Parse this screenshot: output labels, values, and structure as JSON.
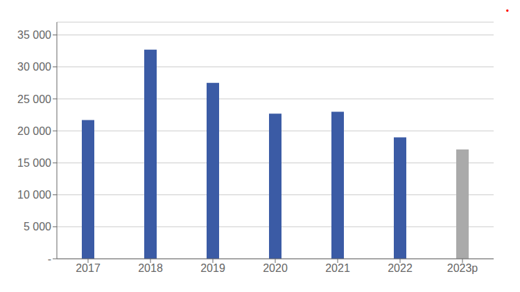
{
  "chart_data": {
    "type": "bar",
    "categories": [
      "2017",
      "2018",
      "2019",
      "2020",
      "2021",
      "2022",
      "2023p"
    ],
    "values": [
      21700,
      32700,
      27500,
      22700,
      23000,
      19000,
      17100
    ],
    "colors": [
      "#3B5BA5",
      "#3B5BA5",
      "#3B5BA5",
      "#3B5BA5",
      "#3B5BA5",
      "#3B5BA5",
      "#AAAAAA"
    ],
    "ylim": [
      0,
      37000
    ],
    "yticks": [
      {
        "value": 0,
        "label": "-"
      },
      {
        "value": 5000,
        "label": "5 000"
      },
      {
        "value": 10000,
        "label": "10 000"
      },
      {
        "value": 15000,
        "label": "15 000"
      },
      {
        "value": 20000,
        "label": "20 000"
      },
      {
        "value": 25000,
        "label": "25 000"
      },
      {
        "value": 30000,
        "label": "30 000"
      },
      {
        "value": 35000,
        "label": "35 000"
      }
    ],
    "grid": true,
    "annotations": [
      "•"
    ]
  }
}
